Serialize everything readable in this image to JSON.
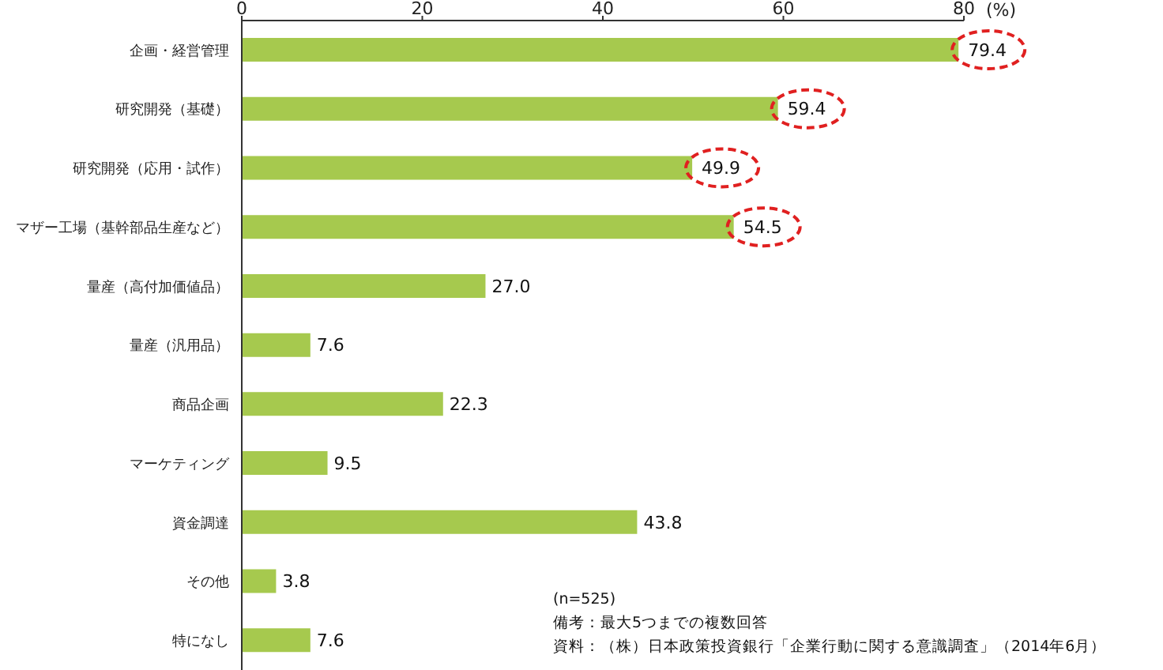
{
  "chart_data": {
    "type": "bar",
    "orientation": "horizontal",
    "xlabel": "(%)",
    "categories": [
      "企画・経営管理",
      "研究開発（基礎）",
      "研究開発（応用・試作）",
      "マザー工場（基幹部品生産など）",
      "量産（高付加価値品）",
      "量産（汎用品）",
      "商品企画",
      "マーケティング",
      "資金調達",
      "その他",
      "特になし"
    ],
    "values": [
      79.4,
      59.4,
      49.9,
      54.5,
      27.0,
      7.6,
      22.3,
      9.5,
      43.8,
      3.8,
      7.6
    ],
    "value_labels": [
      null,
      null,
      null,
      null,
      "27.0",
      "7.6",
      "22.3",
      "9.5",
      "43.8",
      "3.8",
      "7.6"
    ],
    "color": "#a6c94e",
    "xlim": [
      0,
      80
    ],
    "xticks": [
      0,
      20,
      40,
      60,
      80
    ],
    "annotations": [
      {
        "text": "79.4",
        "x": 79.4,
        "y": "企画・経営管理"
      },
      {
        "text": "59.4",
        "x": 59.4,
        "y": "研究開発（基礎）"
      },
      {
        "text": "49.9",
        "x": 49.9,
        "y": "研究開発（応用・試作）"
      },
      {
        "text": "54.5",
        "x": 54.5,
        "y": "マザー工場（基幹部品生産など）"
      },
      "(n=525)",
      "備考：最大5つまでの複数回答",
      "資料：（株）日本政策投資銀行「企業行動に関する意識調査」（2014年6月）"
    ]
  }
}
